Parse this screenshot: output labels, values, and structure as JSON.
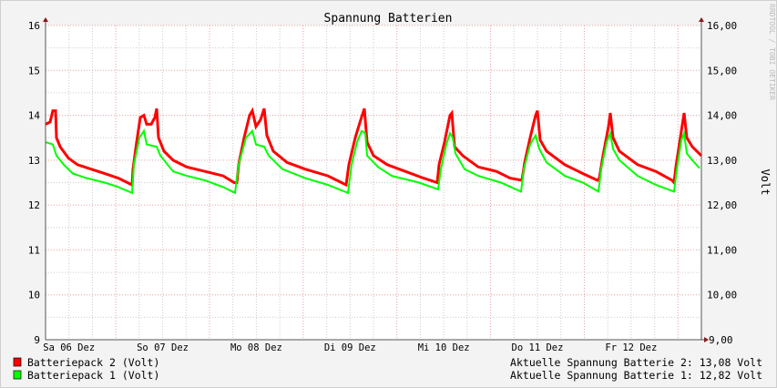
{
  "chart_data": {
    "type": "line",
    "title": "Spannung Batterien",
    "ylabel": "Volt",
    "watermark": "RRDTOOL / TOBI OETIKER",
    "ylim": [
      9,
      16
    ],
    "xlim": [
      "06 06:00",
      "13 06:00"
    ],
    "grid": true,
    "y_ticks_left": [
      "9",
      "10",
      "11",
      "12",
      "13",
      "14",
      "15",
      "16"
    ],
    "y_ticks_right": [
      "9,00",
      "10,00",
      "11,00",
      "12,00",
      "13,00",
      "14,00",
      "15,00",
      "16,00"
    ],
    "x_ticks": [
      {
        "label": "Sa 06 Dez",
        "at": "06 12:00"
      },
      {
        "label": "So 07 Dez",
        "at": "07 12:00"
      },
      {
        "label": "Mo 08 Dez",
        "at": "08 12:00"
      },
      {
        "label": "Di 09 Dez",
        "at": "09 12:00"
      },
      {
        "label": "Mi 10 Dez",
        "at": "10 12:00"
      },
      {
        "label": "Do 11 Dez",
        "at": "11 12:00"
      },
      {
        "label": "Fr 12 Dez",
        "at": "12 12:00"
      }
    ],
    "series": [
      {
        "name": "Batteriepack 2 (Volt)",
        "color": "#ff0000",
        "points": [
          [
            "06 06:00",
            13.8
          ],
          [
            "06 07:10",
            13.85
          ],
          [
            "06 07:52",
            14.1
          ],
          [
            "06 08:34",
            14.1
          ],
          [
            "06 08:48",
            13.5
          ],
          [
            "06 09:44",
            13.3
          ],
          [
            "06 11:50",
            13.05
          ],
          [
            "06 14:10",
            12.9
          ],
          [
            "06 17:40",
            12.8
          ],
          [
            "06 21:10",
            12.7
          ],
          [
            "07 00:40",
            12.6
          ],
          [
            "07 04:10",
            12.45
          ],
          [
            "07 04:24",
            12.8
          ],
          [
            "07 05:20",
            13.4
          ],
          [
            "07 06:16",
            13.95
          ],
          [
            "07 07:12",
            14.0
          ],
          [
            "07 07:54",
            13.8
          ],
          [
            "07 09:04",
            13.8
          ],
          [
            "07 10:00",
            13.95
          ],
          [
            "07 10:28",
            14.15
          ],
          [
            "07 10:56",
            13.5
          ],
          [
            "07 12:20",
            13.2
          ],
          [
            "07 14:40",
            13.0
          ],
          [
            "07 18:10",
            12.85
          ],
          [
            "07 22:50",
            12.75
          ],
          [
            "08 03:30",
            12.65
          ],
          [
            "08 06:18",
            12.5
          ],
          [
            "08 07:00",
            12.5
          ],
          [
            "08 07:28",
            12.9
          ],
          [
            "08 08:52",
            13.5
          ],
          [
            "08 10:16",
            14.0
          ],
          [
            "08 10:58",
            14.1
          ],
          [
            "08 11:54",
            13.75
          ],
          [
            "08 13:04",
            13.9
          ],
          [
            "08 14:00",
            14.15
          ],
          [
            "08 14:42",
            13.55
          ],
          [
            "08 16:20",
            13.2
          ],
          [
            "08 19:50",
            12.95
          ],
          [
            "09 00:30",
            12.8
          ],
          [
            "09 06:20",
            12.65
          ],
          [
            "09 11:00",
            12.45
          ],
          [
            "09 11:42",
            12.9
          ],
          [
            "09 13:20",
            13.5
          ],
          [
            "09 14:44",
            13.9
          ],
          [
            "09 15:40",
            14.15
          ],
          [
            "09 16:22",
            13.4
          ],
          [
            "09 18:00",
            13.1
          ],
          [
            "09 21:30",
            12.9
          ],
          [
            "10 02:10",
            12.75
          ],
          [
            "10 06:50",
            12.6
          ],
          [
            "10 10:20",
            12.5
          ],
          [
            "10 10:48",
            12.9
          ],
          [
            "10 12:12",
            13.4
          ],
          [
            "10 13:36",
            14.0
          ],
          [
            "10 14:04",
            14.05
          ],
          [
            "10 14:46",
            13.3
          ],
          [
            "10 16:52",
            13.1
          ],
          [
            "10 20:50",
            12.85
          ],
          [
            "11 01:30",
            12.75
          ],
          [
            "11 05:00",
            12.6
          ],
          [
            "11 08:02",
            12.55
          ],
          [
            "11 08:44",
            12.95
          ],
          [
            "11 10:08",
            13.5
          ],
          [
            "11 11:32",
            14.0
          ],
          [
            "11 12:00",
            14.1
          ],
          [
            "11 12:42",
            13.45
          ],
          [
            "11 14:20",
            13.2
          ],
          [
            "11 19:00",
            12.9
          ],
          [
            "11 23:40",
            12.7
          ],
          [
            "12 03:24",
            12.55
          ],
          [
            "12 03:52",
            12.6
          ],
          [
            "12 04:48",
            13.1
          ],
          [
            "12 06:12",
            13.75
          ],
          [
            "12 06:40",
            14.05
          ],
          [
            "12 07:22",
            13.5
          ],
          [
            "12 09:00",
            13.2
          ],
          [
            "12 13:40",
            12.9
          ],
          [
            "12 18:20",
            12.75
          ],
          [
            "12 22:32",
            12.55
          ],
          [
            "12 23:00",
            12.5
          ],
          [
            "12 23:28",
            12.85
          ],
          [
            "13 00:52",
            13.65
          ],
          [
            "13 01:34",
            14.05
          ],
          [
            "13 02:16",
            13.5
          ],
          [
            "13 03:40",
            13.3
          ],
          [
            "13 06:00",
            13.1
          ]
        ]
      },
      {
        "name": "Batteriepack 1 (Volt)",
        "color": "#00ff00",
        "points": [
          [
            "06 06:00",
            13.4
          ],
          [
            "06 07:52",
            13.35
          ],
          [
            "06 08:48",
            13.1
          ],
          [
            "06 10:40",
            12.9
          ],
          [
            "06 13:00",
            12.7
          ],
          [
            "06 16:30",
            12.6
          ],
          [
            "06 21:10",
            12.5
          ],
          [
            "07 00:40",
            12.4
          ],
          [
            "07 04:10",
            12.27
          ],
          [
            "07 04:38",
            12.9
          ],
          [
            "07 06:02",
            13.5
          ],
          [
            "07 07:12",
            13.65
          ],
          [
            "07 07:54",
            13.35
          ],
          [
            "07 10:28",
            13.3
          ],
          [
            "07 11:24",
            13.1
          ],
          [
            "07 14:40",
            12.75
          ],
          [
            "07 18:10",
            12.65
          ],
          [
            "07 22:50",
            12.55
          ],
          [
            "08 03:30",
            12.4
          ],
          [
            "08 06:32",
            12.27
          ],
          [
            "08 07:28",
            12.9
          ],
          [
            "08 09:20",
            13.5
          ],
          [
            "08 10:58",
            13.65
          ],
          [
            "08 11:54",
            13.35
          ],
          [
            "08 14:00",
            13.3
          ],
          [
            "08 15:10",
            13.1
          ],
          [
            "08 18:40",
            12.8
          ],
          [
            "09 00:30",
            12.6
          ],
          [
            "09 06:20",
            12.45
          ],
          [
            "09 11:28",
            12.27
          ],
          [
            "09 12:24",
            12.9
          ],
          [
            "09 13:48",
            13.4
          ],
          [
            "09 14:58",
            13.65
          ],
          [
            "09 15:54",
            13.6
          ],
          [
            "09 16:22",
            13.1
          ],
          [
            "09 19:10",
            12.85
          ],
          [
            "09 22:40",
            12.65
          ],
          [
            "10 05:40",
            12.5
          ],
          [
            "10 10:34",
            12.35
          ],
          [
            "10 11:16",
            12.8
          ],
          [
            "10 12:40",
            13.35
          ],
          [
            "10 13:36",
            13.6
          ],
          [
            "10 14:18",
            13.5
          ],
          [
            "10 15:00",
            13.15
          ],
          [
            "10 17:20",
            12.8
          ],
          [
            "10 20:50",
            12.65
          ],
          [
            "11 02:40",
            12.5
          ],
          [
            "11 07:48",
            12.3
          ],
          [
            "11 08:30",
            12.8
          ],
          [
            "11 10:08",
            13.35
          ],
          [
            "11 11:32",
            13.55
          ],
          [
            "11 12:28",
            13.25
          ],
          [
            "11 14:20",
            12.95
          ],
          [
            "11 19:00",
            12.65
          ],
          [
            "11 23:40",
            12.5
          ],
          [
            "12 03:38",
            12.3
          ],
          [
            "12 04:20",
            12.8
          ],
          [
            "12 05:44",
            13.4
          ],
          [
            "12 06:40",
            13.6
          ],
          [
            "12 07:22",
            13.25
          ],
          [
            "12 09:00",
            13.0
          ],
          [
            "12 13:40",
            12.65
          ],
          [
            "12 18:20",
            12.45
          ],
          [
            "12 23:00",
            12.3
          ],
          [
            "12 23:42",
            12.8
          ],
          [
            "13 00:52",
            13.45
          ],
          [
            "13 01:34",
            13.6
          ],
          [
            "13 02:16",
            13.15
          ],
          [
            "13 03:40",
            13.0
          ],
          [
            "13 05:32",
            12.82
          ]
        ]
      }
    ],
    "legend": {
      "placement": "bottom-left",
      "items": [
        "Batteriepack 2 (Volt)",
        "Batteriepack 1 (Volt)"
      ]
    },
    "annotations": [
      "Aktuelle Spannung Batterie 2: 13,08 Volt",
      "Aktuelle Spannung Batterie 1: 12,82 Volt"
    ]
  }
}
